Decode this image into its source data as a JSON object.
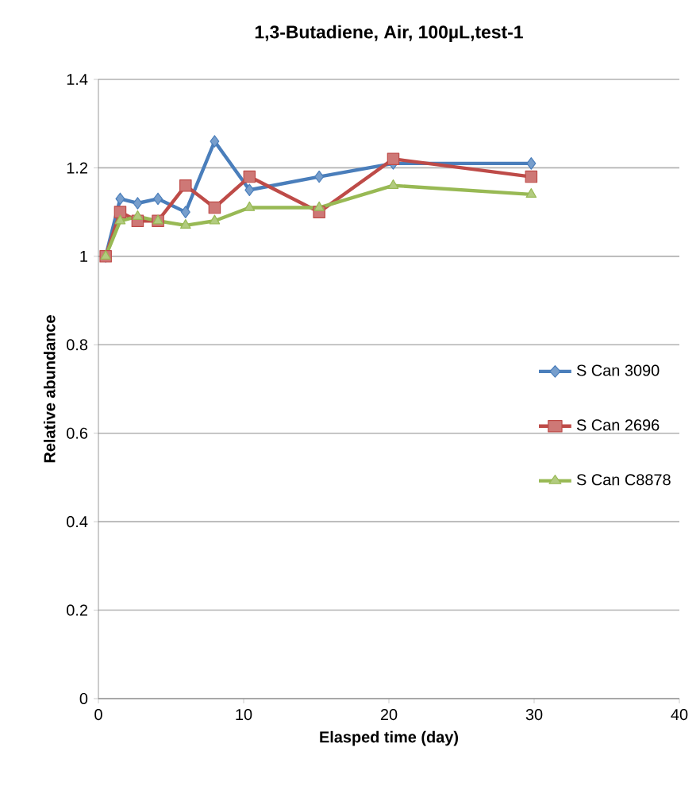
{
  "chart_data": {
    "type": "line",
    "title": "1,3-Butadiene, Air, 100µL,test-1",
    "xlabel": "Elasped time (day)",
    "ylabel": "Relative abundance",
    "x": [
      0.5,
      1.5,
      2.7,
      4.1,
      6,
      8,
      10.4,
      15.2,
      20.3,
      29.8
    ],
    "series": [
      {
        "name": "S Can 3090",
        "color": "#4a7ebb",
        "marker": "diamond",
        "values": [
          1.0,
          1.13,
          1.12,
          1.13,
          1.1,
          1.26,
          1.15,
          1.18,
          1.21,
          1.21
        ]
      },
      {
        "name": "S Can 2696",
        "color": "#be4b48",
        "marker": "square",
        "values": [
          1.0,
          1.1,
          1.08,
          1.08,
          1.16,
          1.11,
          1.18,
          1.1,
          1.22,
          1.18
        ]
      },
      {
        "name": "S Can C8878",
        "color": "#98b954",
        "marker": "triangle",
        "values": [
          1.0,
          1.08,
          1.09,
          1.08,
          1.07,
          1.08,
          1.11,
          1.11,
          1.16,
          1.14
        ]
      }
    ],
    "xlim": [
      0,
      40
    ],
    "xticks": [
      0,
      10,
      20,
      30,
      40
    ],
    "ylim": [
      0,
      1.4
    ],
    "yticks": [
      0,
      0.2,
      0.4,
      0.6,
      0.8,
      1,
      1.2,
      1.4
    ],
    "grid": "y",
    "legend": "right",
    "line_style": "solid"
  }
}
